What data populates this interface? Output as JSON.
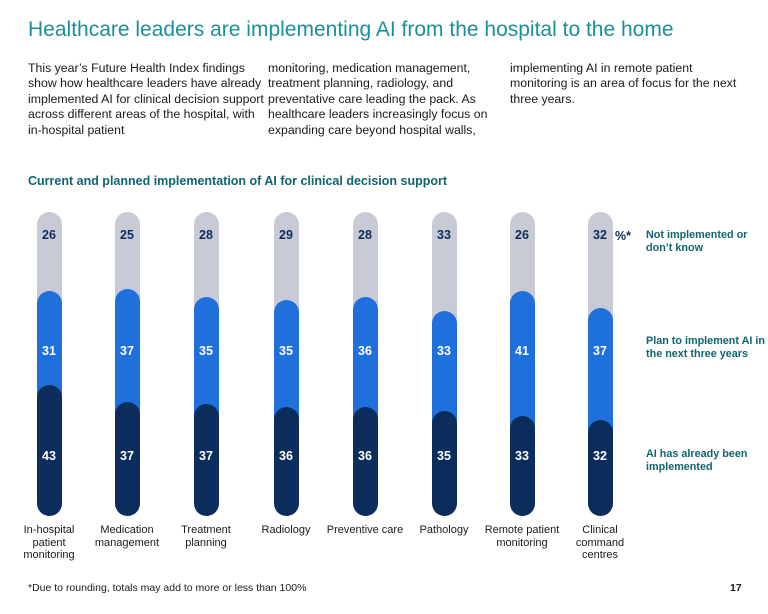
{
  "page": {
    "title": "Healthcare leaders are implementing AI from the hospital to the home",
    "intro_columns": [
      "This year’s Future Health Index findings show how healthcare leaders have already implemented AI for clinical decision support across different areas of the hospital, with in-hospital patient",
      "monitoring, medication management, treatment planning, radiology, and preventative care leading the pack. As healthcare leaders increasingly focus on expanding care beyond hospital walls,",
      "implementing AI in remote patient monitoring is an area of focus for the next three years."
    ],
    "footnote": "*Due to rounding, totals may add to more or less than 100%",
    "page_number": "17"
  },
  "colors": {
    "title": "#1b8f97",
    "legend_text": "#0e6570",
    "not_implemented": "#c8cbd6",
    "plan_to_implement": "#1f6fdc",
    "already_implemented": "#0b2d5b",
    "value_on_light": "#0b2d5b",
    "value_on_dark": "#ffffff"
  },
  "chart_data": {
    "type": "bar",
    "stacked": true,
    "title": "Current and planned implementation of AI for clinical decision support",
    "unit_label": "%*",
    "categories": [
      "In-hospital patient monitoring",
      "Medication management",
      "Treatment planning",
      "Radiology",
      "Preventive care",
      "Pathology",
      "Remote patient monitoring",
      "Clinical command centres"
    ],
    "series": [
      {
        "name": "AI has already been implemented",
        "values": [
          43,
          37,
          37,
          36,
          36,
          35,
          33,
          32
        ]
      },
      {
        "name": "Plan to implement AI in the next three years",
        "values": [
          31,
          37,
          35,
          35,
          36,
          33,
          41,
          37
        ]
      },
      {
        "name": "Not implemented or don’t know",
        "values": [
          26,
          25,
          28,
          29,
          28,
          33,
          26,
          32
        ]
      }
    ],
    "legend": [
      "Not implemented or don’t know",
      "Plan to implement AI in the next three years",
      "AI has already been implemented"
    ],
    "xlabel": "",
    "ylabel": ""
  }
}
